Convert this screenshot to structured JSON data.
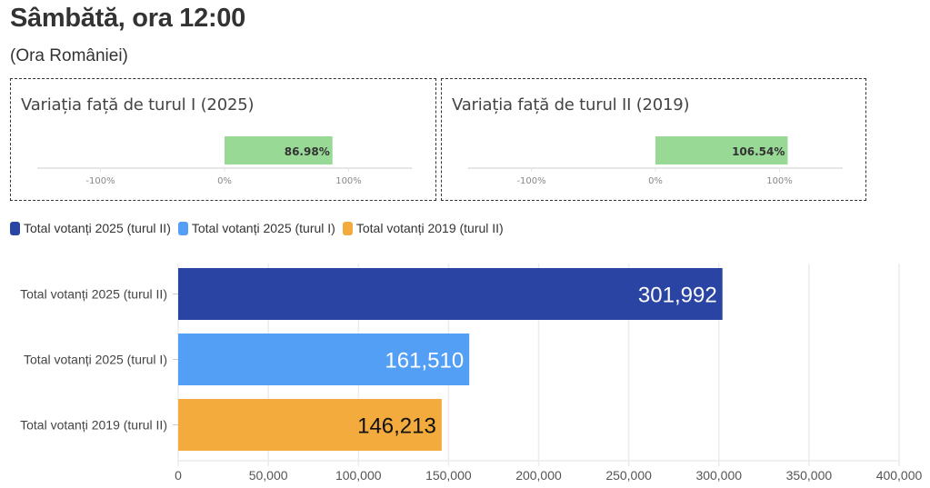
{
  "header": {
    "title": "Sâmbătă, ora 12:00",
    "subtitle": "(Ora României)"
  },
  "variation_panels": [
    {
      "title": "Variația față de turul I (2025)",
      "value": 86.98,
      "value_label": "86.98%",
      "ticks": [
        "-100%",
        "0%",
        "100%"
      ],
      "tick_values": [
        -100,
        0,
        100
      ],
      "bar_color": "#98d996"
    },
    {
      "title": "Variația față de turul II (2019)",
      "value": 106.54,
      "value_label": "106.54%",
      "ticks": [
        "-100%",
        "0%",
        "100%"
      ],
      "tick_values": [
        -100,
        0,
        100
      ],
      "bar_color": "#98d996"
    }
  ],
  "legend": [
    {
      "label": "Total votanți 2025 (turul II)",
      "color": "#2a44a3"
    },
    {
      "label": "Total votanți 2025 (turul I)",
      "color": "#529ff5"
    },
    {
      "label": "Total votanți 2019 (turul II)",
      "color": "#f2ab3c"
    }
  ],
  "chart_data": {
    "type": "bar",
    "orientation": "horizontal",
    "title": "",
    "xlabel": "",
    "ylabel": "",
    "categories": [
      "Total votanți 2025 (turul II)",
      "Total votanți 2025 (turul I)",
      "Total votanți 2019 (turul II)"
    ],
    "values": [
      301992,
      161510,
      146213
    ],
    "value_labels": [
      "301,992",
      "161,510",
      "146,213"
    ],
    "colors": [
      "#2a44a3",
      "#529ff5",
      "#f2ab3c"
    ],
    "label_colors": [
      "#ffffff",
      "#ffffff",
      "#111111"
    ],
    "xlim": [
      0,
      400000
    ],
    "x_ticks": [
      0,
      50000,
      100000,
      150000,
      200000,
      250000,
      300000,
      350000,
      400000
    ],
    "x_tick_labels": [
      "0",
      "50,000",
      "100,000",
      "150,000",
      "200,000",
      "250,000",
      "300,000",
      "350,000",
      "400,000"
    ],
    "grid": true,
    "legend_position": "top-left"
  }
}
